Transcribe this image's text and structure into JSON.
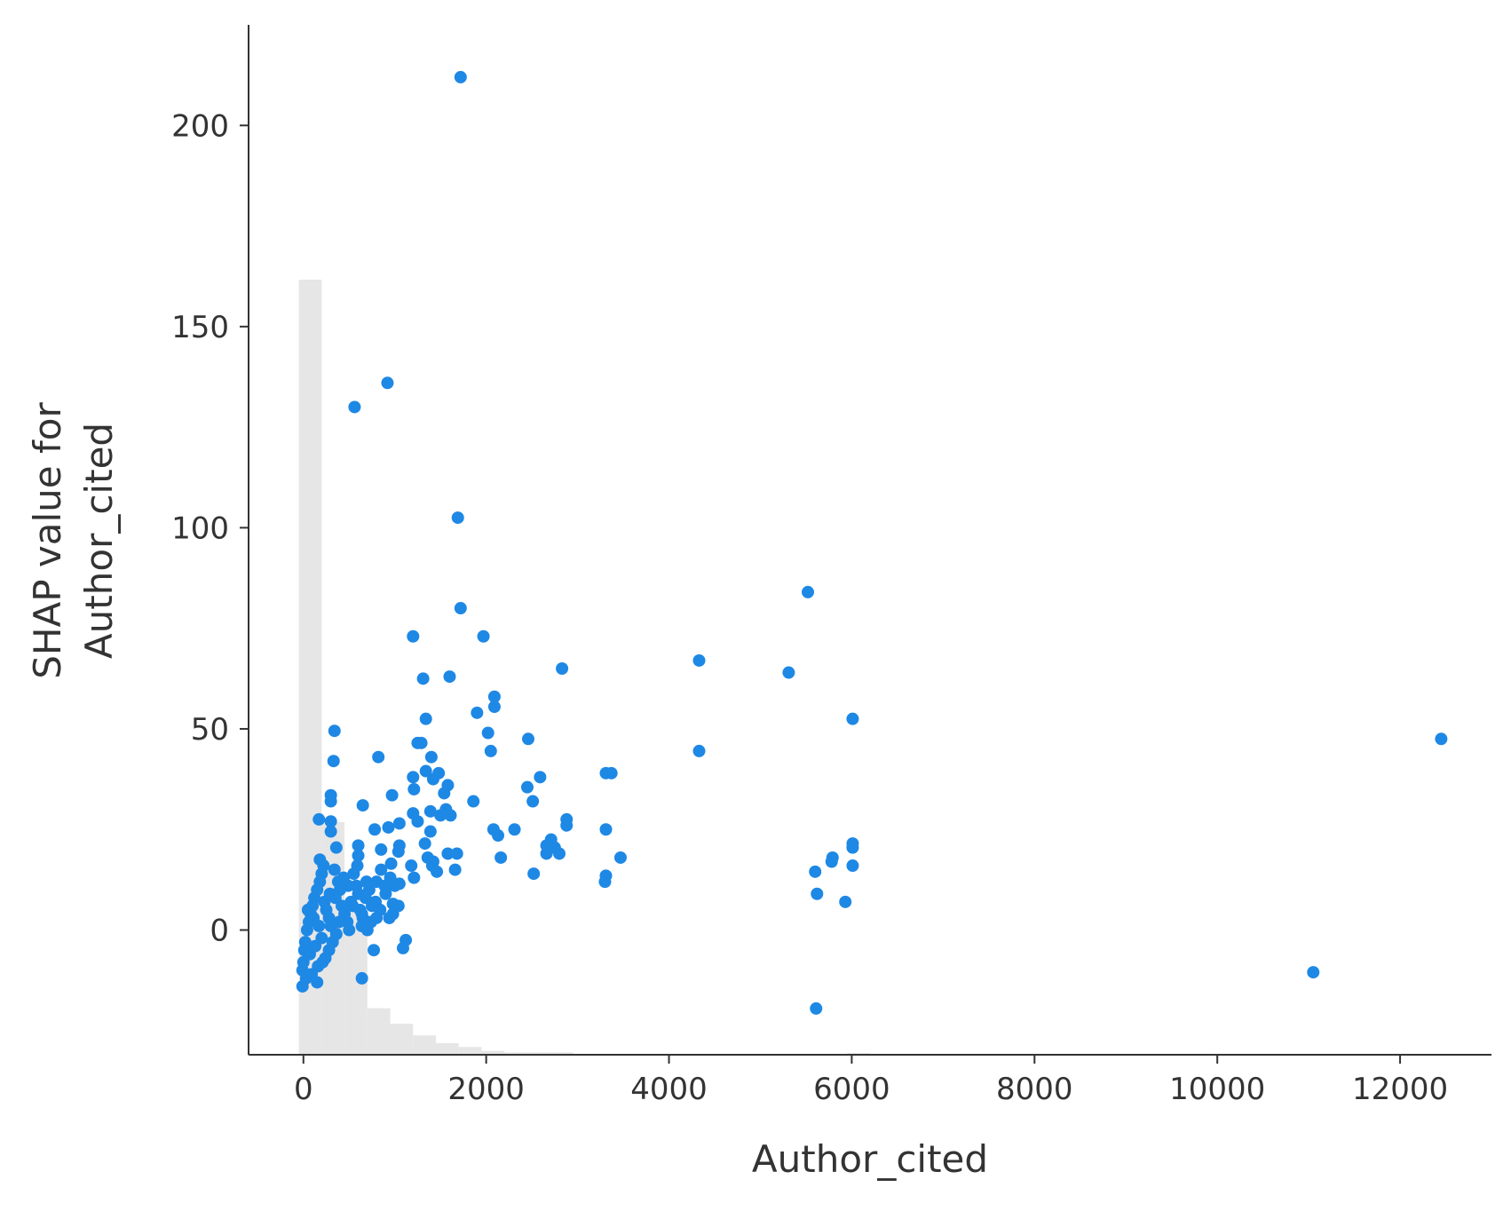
{
  "chart_data": {
    "type": "scatter",
    "xlabel": "Author_cited",
    "ylabel_lines": [
      "SHAP value for",
      "Author_cited"
    ],
    "xlim": [
      -600,
      13000
    ],
    "ylim": [
      -31,
      225
    ],
    "x_ticks": [
      0,
      2000,
      4000,
      6000,
      8000,
      10000,
      12000
    ],
    "y_ticks": [
      0,
      50,
      100,
      150,
      200
    ],
    "grid": false,
    "point_color": "#1e88e5",
    "histogram_color": "#e6e6e6",
    "histogram": {
      "bin_edges": [
        -50,
        200,
        450,
        700,
        950,
        1200,
        1450,
        1700,
        1950,
        2200,
        2450,
        2700,
        2950,
        3200,
        3450,
        3700,
        3950,
        4200,
        4450,
        4700,
        4950,
        5200,
        5450,
        5700,
        5950,
        6200
      ],
      "counts": [
        1000,
        300,
        190,
        60,
        40,
        25,
        15,
        10,
        5,
        3,
        3,
        3,
        1,
        1,
        1,
        0,
        0,
        1,
        0,
        0,
        0,
        0,
        0,
        0,
        2
      ]
    },
    "points": [
      [
        1720,
        212
      ],
      [
        920,
        136
      ],
      [
        560,
        130
      ],
      [
        1690,
        102.5
      ],
      [
        5520,
        84
      ],
      [
        1720,
        80
      ],
      [
        1970,
        73
      ],
      [
        1200,
        73
      ],
      [
        4330,
        67
      ],
      [
        2830,
        65
      ],
      [
        5310,
        64
      ],
      [
        1600,
        63
      ],
      [
        1310,
        62.5
      ],
      [
        2090,
        58
      ],
      [
        2090,
        55.5
      ],
      [
        1900,
        54
      ],
      [
        6010,
        52.5
      ],
      [
        1340,
        52.5
      ],
      [
        340,
        49.5
      ],
      [
        2020,
        49
      ],
      [
        12450,
        47.5
      ],
      [
        2460,
        47.5
      ],
      [
        1250,
        46.5
      ],
      [
        1290,
        46.5
      ],
      [
        4330,
        44.5
      ],
      [
        2050,
        44.5
      ],
      [
        820,
        43
      ],
      [
        1400,
        43
      ],
      [
        330,
        42
      ],
      [
        1340,
        39.5
      ],
      [
        1480,
        39
      ],
      [
        3310,
        39
      ],
      [
        3370,
        39
      ],
      [
        1200,
        38
      ],
      [
        1420,
        37.5
      ],
      [
        2590,
        38
      ],
      [
        1580,
        36
      ],
      [
        2450,
        35.5
      ],
      [
        1210,
        35
      ],
      [
        1540,
        34
      ],
      [
        970,
        33.5
      ],
      [
        300,
        33.5
      ],
      [
        300,
        32
      ],
      [
        2510,
        32
      ],
      [
        1860,
        32
      ],
      [
        650,
        31
      ],
      [
        1560,
        30
      ],
      [
        1390,
        29.5
      ],
      [
        1200,
        29
      ],
      [
        1500,
        28.5
      ],
      [
        1610,
        28.5
      ],
      [
        170,
        27.5
      ],
      [
        2880,
        27.5
      ],
      [
        300,
        27
      ],
      [
        1250,
        27
      ],
      [
        1050,
        26.5
      ],
      [
        2880,
        26
      ],
      [
        930,
        25.5
      ],
      [
        780,
        25
      ],
      [
        2080,
        25
      ],
      [
        2310,
        25
      ],
      [
        3310,
        25
      ],
      [
        300,
        24.5
      ],
      [
        1390,
        24.5
      ],
      [
        2130,
        23.5
      ],
      [
        2710,
        22.5
      ],
      [
        1330,
        21.5
      ],
      [
        6010,
        21.5
      ],
      [
        600,
        21
      ],
      [
        1050,
        21
      ],
      [
        2660,
        21
      ],
      [
        6010,
        20.5
      ],
      [
        360,
        20.5
      ],
      [
        2750,
        20.5
      ],
      [
        850,
        20
      ],
      [
        1040,
        19.5
      ],
      [
        1580,
        19
      ],
      [
        1680,
        19
      ],
      [
        2660,
        19
      ],
      [
        2800,
        19
      ],
      [
        600,
        18.5
      ],
      [
        1360,
        18
      ],
      [
        3470,
        18
      ],
      [
        5790,
        18
      ],
      [
        180,
        17.5
      ],
      [
        2160,
        18
      ],
      [
        1420,
        17
      ],
      [
        5780,
        17
      ],
      [
        960,
        16.5
      ],
      [
        1180,
        16
      ],
      [
        1410,
        16
      ],
      [
        6010,
        16
      ],
      [
        1660,
        15
      ],
      [
        2520,
        14
      ],
      [
        5600,
        14.5
      ],
      [
        1460,
        14.5
      ],
      [
        3310,
        13.5
      ],
      [
        1210,
        13
      ],
      [
        3300,
        12
      ],
      [
        1050,
        11.5
      ],
      [
        5620,
        9
      ],
      [
        5930,
        7
      ],
      [
        980,
        6.5
      ],
      [
        1040,
        6
      ],
      [
        980,
        4
      ],
      [
        800,
        3
      ],
      [
        640,
        1
      ],
      [
        700,
        0
      ],
      [
        1120,
        -2.5
      ],
      [
        1090,
        -4.5
      ],
      [
        770,
        -5
      ],
      [
        640,
        -12
      ],
      [
        11050,
        -10.5
      ],
      [
        5610,
        -19.5
      ],
      [
        -10,
        -14
      ],
      [
        -10,
        -10
      ],
      [
        0,
        -8
      ],
      [
        10,
        -5
      ],
      [
        20,
        -3
      ],
      [
        40,
        0
      ],
      [
        60,
        2
      ],
      [
        80,
        4
      ],
      [
        100,
        6
      ],
      [
        120,
        8
      ],
      [
        150,
        10
      ],
      [
        180,
        12
      ],
      [
        200,
        14
      ],
      [
        220,
        16
      ],
      [
        250,
        5
      ],
      [
        280,
        3
      ],
      [
        300,
        1
      ],
      [
        350,
        8
      ],
      [
        380,
        12
      ],
      [
        400,
        10
      ],
      [
        420,
        6
      ],
      [
        450,
        4
      ],
      [
        480,
        2
      ],
      [
        500,
        0
      ],
      [
        520,
        7
      ],
      [
        550,
        14
      ],
      [
        580,
        11
      ],
      [
        600,
        9
      ],
      [
        620,
        5
      ],
      [
        650,
        3
      ],
      [
        680,
        8
      ],
      [
        720,
        10
      ],
      [
        750,
        6
      ],
      [
        800,
        12
      ],
      [
        850,
        15
      ],
      [
        900,
        9
      ],
      [
        950,
        13
      ],
      [
        1000,
        11
      ],
      [
        70,
        -6
      ],
      [
        130,
        -4
      ],
      [
        160,
        -9
      ],
      [
        200,
        -2
      ],
      [
        240,
        -7
      ],
      [
        280,
        -5
      ],
      [
        320,
        -3
      ],
      [
        360,
        -1
      ],
      [
        30,
        -12
      ],
      [
        90,
        -11
      ],
      [
        150,
        -13
      ],
      [
        210,
        -8
      ],
      [
        50,
        5
      ],
      [
        110,
        3
      ],
      [
        170,
        1
      ],
      [
        230,
        7
      ],
      [
        290,
        9
      ],
      [
        340,
        15
      ],
      [
        390,
        2
      ],
      [
        440,
        13
      ],
      [
        490,
        11
      ],
      [
        540,
        6
      ],
      [
        590,
        16
      ],
      [
        640,
        4
      ],
      [
        690,
        12
      ],
      [
        740,
        2
      ],
      [
        790,
        7
      ],
      [
        840,
        5
      ],
      [
        890,
        11
      ],
      [
        940,
        3
      ]
    ]
  }
}
